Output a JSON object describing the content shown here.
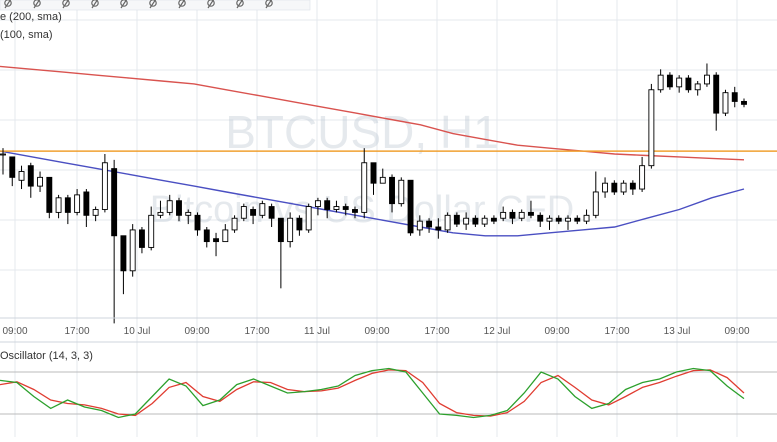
{
  "toolbar": {
    "icons": [
      "crosshair-icon",
      "draw-line-icon",
      "pencil-icon",
      "brush-icon",
      "cursor-icon",
      "fit-icon",
      "ruler-icon",
      "magnet-icon",
      "settings-icon",
      "resize-icon"
    ]
  },
  "legend": {
    "sma200": "e (200, sma)",
    "sma100": "(100, sma)",
    "oscillator": "Oscillator (14, 3, 3)"
  },
  "watermark": {
    "symbol": "BTCUSD, H1",
    "name": "Bitcoin vs US Dollar CFD"
  },
  "colors": {
    "up_candle": "#ffffff",
    "down_candle": "#000000",
    "sma200": "#d9534f",
    "sma100": "#4a4fc2",
    "horizontal_line": "#f0a030",
    "stoch_k": "#2ca02c",
    "stoch_d": "#e03c31",
    "grid": "#e4e8ee"
  },
  "chart_data": [
    {
      "type": "candlestick",
      "x_tick_labels": [
        "09:00",
        "17:00",
        "10 Jul",
        "09:00",
        "17:00",
        "11 Jul",
        "09:00",
        "17:00",
        "12 Jul",
        "09:00",
        "17:00",
        "13 Jul",
        "09:00"
      ],
      "candles": [
        [
          0.5,
          0.5,
          0.52,
          0.43
        ],
        [
          0.49,
          0.42,
          0.49,
          0.39
        ],
        [
          0.41,
          0.44,
          0.46,
          0.38
        ],
        [
          0.46,
          0.39,
          0.47,
          0.35
        ],
        [
          0.39,
          0.42,
          0.44,
          0.37
        ],
        [
          0.42,
          0.3,
          0.42,
          0.28
        ],
        [
          0.3,
          0.35,
          0.36,
          0.28
        ],
        [
          0.35,
          0.3,
          0.36,
          0.26
        ],
        [
          0.3,
          0.36,
          0.38,
          0.29
        ],
        [
          0.37,
          0.29,
          0.38,
          0.25
        ],
        [
          0.29,
          0.31,
          0.32,
          0.27
        ],
        [
          0.31,
          0.47,
          0.5,
          0.3
        ],
        [
          0.45,
          0.22,
          0.48,
          -0.08
        ],
        [
          0.22,
          0.1,
          0.22,
          0.02
        ],
        [
          0.1,
          0.24,
          0.26,
          0.08
        ],
        [
          0.24,
          0.18,
          0.25,
          0.16
        ],
        [
          0.18,
          0.29,
          0.32,
          0.17
        ],
        [
          0.29,
          0.3,
          0.34,
          0.28
        ],
        [
          0.3,
          0.34,
          0.36,
          0.29
        ],
        [
          0.34,
          0.29,
          0.35,
          0.27
        ],
        [
          0.29,
          0.3,
          0.31,
          0.26
        ],
        [
          0.29,
          0.24,
          0.3,
          0.22
        ],
        [
          0.24,
          0.2,
          0.25,
          0.18
        ],
        [
          0.21,
          0.2,
          0.23,
          0.15
        ],
        [
          0.2,
          0.24,
          0.26,
          0.2
        ],
        [
          0.24,
          0.28,
          0.29,
          0.23
        ],
        [
          0.28,
          0.32,
          0.33,
          0.27
        ],
        [
          0.31,
          0.29,
          0.32,
          0.26
        ],
        [
          0.29,
          0.33,
          0.34,
          0.28
        ],
        [
          0.32,
          0.28,
          0.33,
          0.25
        ],
        [
          0.28,
          0.2,
          0.28,
          0.04
        ],
        [
          0.2,
          0.28,
          0.3,
          0.18
        ],
        [
          0.28,
          0.24,
          0.29,
          0.22
        ],
        [
          0.24,
          0.32,
          0.33,
          0.23
        ],
        [
          0.32,
          0.34,
          0.35,
          0.29
        ],
        [
          0.34,
          0.31,
          0.35,
          0.28
        ],
        [
          0.31,
          0.32,
          0.34,
          0.3
        ],
        [
          0.32,
          0.31,
          0.33,
          0.29
        ],
        [
          0.31,
          0.3,
          0.32,
          0.28
        ],
        [
          0.3,
          0.47,
          0.52,
          0.28
        ],
        [
          0.47,
          0.4,
          0.47,
          0.36
        ],
        [
          0.4,
          0.42,
          0.45,
          0.4
        ],
        [
          0.42,
          0.33,
          0.43,
          0.3
        ],
        [
          0.33,
          0.41,
          0.42,
          0.32
        ],
        [
          0.41,
          0.23,
          0.41,
          0.22
        ],
        [
          0.24,
          0.27,
          0.29,
          0.22
        ],
        [
          0.27,
          0.25,
          0.28,
          0.23
        ],
        [
          0.25,
          0.24,
          0.28,
          0.21
        ],
        [
          0.24,
          0.29,
          0.3,
          0.23
        ],
        [
          0.29,
          0.26,
          0.3,
          0.25
        ],
        [
          0.26,
          0.28,
          0.3,
          0.24
        ],
        [
          0.28,
          0.26,
          0.29,
          0.25
        ],
        [
          0.26,
          0.28,
          0.29,
          0.25
        ],
        [
          0.28,
          0.27,
          0.29,
          0.26
        ],
        [
          0.28,
          0.3,
          0.32,
          0.27
        ],
        [
          0.3,
          0.28,
          0.31,
          0.26
        ],
        [
          0.28,
          0.3,
          0.31,
          0.27
        ],
        [
          0.3,
          0.29,
          0.34,
          0.28
        ],
        [
          0.29,
          0.27,
          0.3,
          0.25
        ],
        [
          0.27,
          0.28,
          0.29,
          0.24
        ],
        [
          0.28,
          0.27,
          0.29,
          0.26
        ],
        [
          0.27,
          0.28,
          0.29,
          0.24
        ],
        [
          0.28,
          0.27,
          0.29,
          0.26
        ],
        [
          0.27,
          0.29,
          0.31,
          0.26
        ],
        [
          0.29,
          0.37,
          0.44,
          0.28
        ],
        [
          0.37,
          0.4,
          0.42,
          0.35
        ],
        [
          0.4,
          0.37,
          0.41,
          0.36
        ],
        [
          0.37,
          0.4,
          0.41,
          0.36
        ],
        [
          0.4,
          0.38,
          0.41,
          0.36
        ],
        [
          0.38,
          0.46,
          0.49,
          0.37
        ],
        [
          0.46,
          0.72,
          0.74,
          0.45
        ],
        [
          0.72,
          0.77,
          0.79,
          0.71
        ],
        [
          0.77,
          0.73,
          0.78,
          0.72
        ],
        [
          0.73,
          0.76,
          0.77,
          0.71
        ],
        [
          0.76,
          0.72,
          0.77,
          0.71
        ],
        [
          0.72,
          0.74,
          0.75,
          0.7
        ],
        [
          0.74,
          0.77,
          0.81,
          0.73
        ],
        [
          0.77,
          0.64,
          0.78,
          0.58
        ],
        [
          0.64,
          0.71,
          0.72,
          0.63
        ],
        [
          0.71,
          0.68,
          0.73,
          0.66
        ],
        [
          0.68,
          0.67,
          0.69,
          0.66
        ]
      ],
      "sma200": [
        0.8,
        0.79,
        0.78,
        0.77,
        0.76,
        0.75,
        0.74,
        0.72,
        0.7,
        0.68,
        0.66,
        0.64,
        0.62,
        0.6,
        0.57,
        0.55,
        0.53,
        0.52,
        0.51,
        0.5,
        0.495,
        0.49,
        0.485,
        0.48
      ],
      "sma100": [
        0.51,
        0.49,
        0.47,
        0.45,
        0.43,
        0.41,
        0.39,
        0.37,
        0.35,
        0.33,
        0.31,
        0.29,
        0.27,
        0.25,
        0.23,
        0.22,
        0.22,
        0.23,
        0.24,
        0.25,
        0.28,
        0.31,
        0.35,
        0.38
      ],
      "horizontal_line_level": 0.51,
      "stoch_k": [
        68,
        65,
        45,
        28,
        40,
        30,
        25,
        15,
        20,
        45,
        70,
        60,
        32,
        40,
        62,
        70,
        60,
        50,
        52,
        55,
        60,
        75,
        82,
        85,
        80,
        50,
        20,
        18,
        15,
        18,
        25,
        50,
        80,
        70,
        45,
        28,
        35,
        55,
        65,
        70,
        80,
        85,
        82,
        60,
        42
      ],
      "stoch_d": [
        62,
        66,
        55,
        40,
        35,
        33,
        28,
        20,
        18,
        35,
        58,
        65,
        45,
        38,
        55,
        66,
        65,
        55,
        52,
        53,
        57,
        68,
        78,
        83,
        82,
        65,
        35,
        22,
        18,
        17,
        22,
        38,
        65,
        75,
        58,
        40,
        33,
        45,
        58,
        65,
        74,
        82,
        83,
        72,
        50
      ]
    }
  ]
}
